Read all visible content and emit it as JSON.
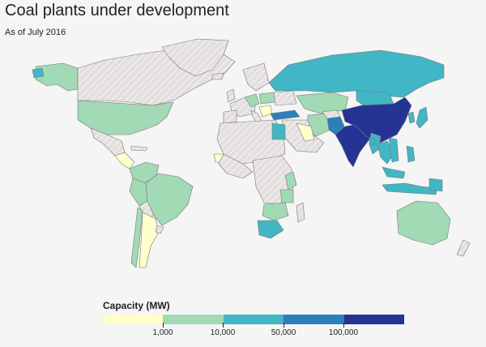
{
  "title": "Coal plants under development",
  "subtitle": "As of July 2016",
  "legend": {
    "title": "Capacity (MW)",
    "colors": [
      "#ffffcc",
      "#a1dab4",
      "#41b6c4",
      "#2c7fb8",
      "#253494"
    ],
    "labels": [
      "1,000",
      "10,000",
      "50,000",
      "100,000"
    ]
  },
  "colors": {
    "background": "#f5f5f5",
    "no_data": "#e4dfdf",
    "border": "#777777"
  }
}
